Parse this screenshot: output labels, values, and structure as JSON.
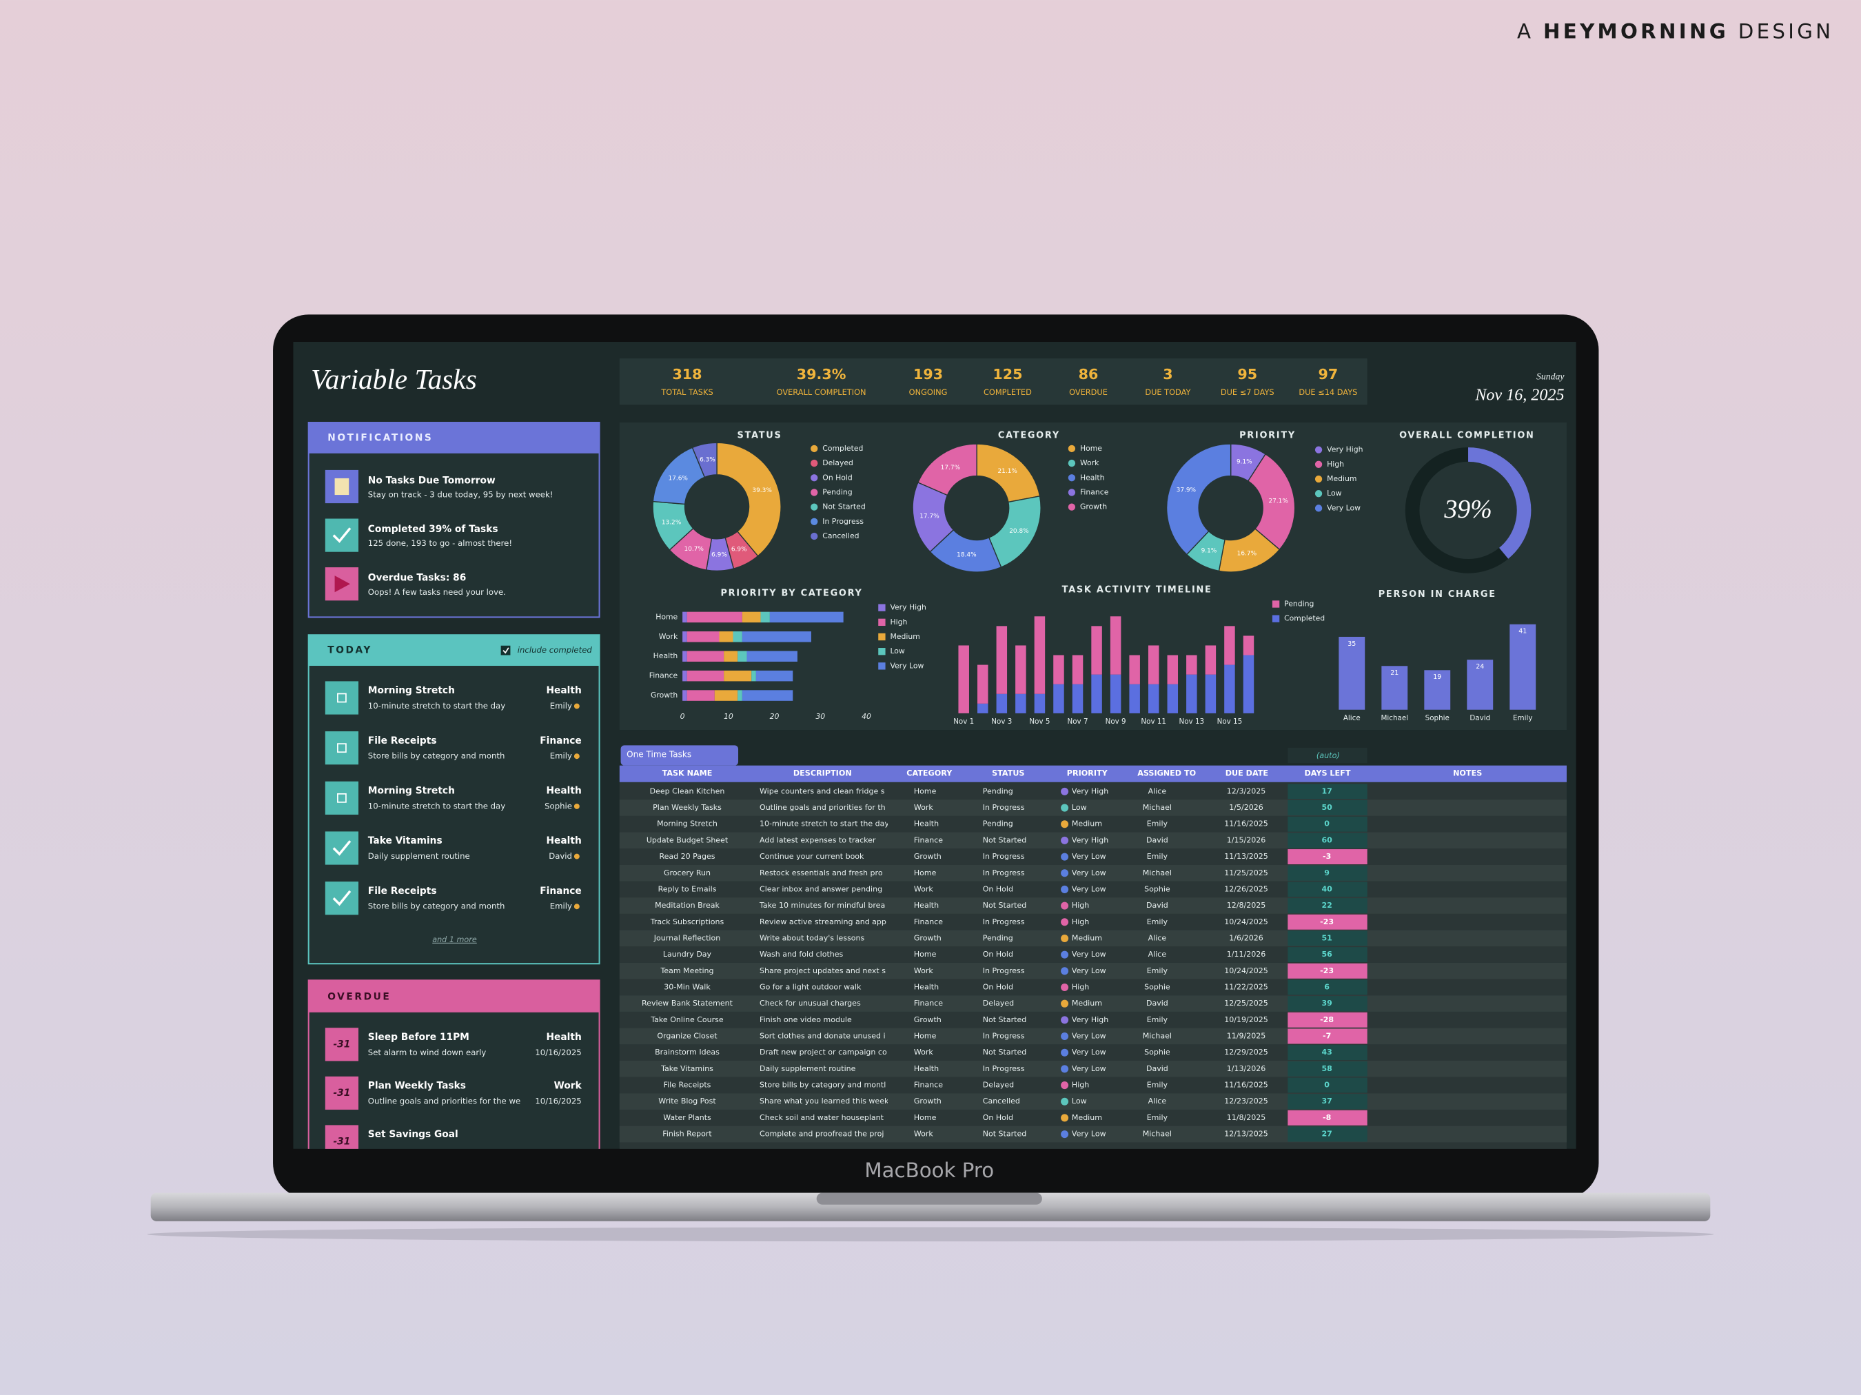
{
  "brand": {
    "prefix": "A",
    "name": "HEYMORNING",
    "suffix": "DESIGN"
  },
  "device_label": "MacBook Pro",
  "header": {
    "title": "Variable Tasks",
    "weekday": "Sunday",
    "date": "Nov 16, 2025"
  },
  "kpis": [
    {
      "value": 318,
      "label": "TOTAL TASKS"
    },
    {
      "value": "39.3%",
      "label": "OVERALL COMPLETION"
    },
    {
      "value": 193,
      "label": "ONGOING"
    },
    {
      "value": 125,
      "label": "COMPLETED"
    },
    {
      "value": 86,
      "label": "OVERDUE"
    },
    {
      "value": 3,
      "label": "DUE TODAY"
    },
    {
      "value": 95,
      "label": "DUE ≤7 DAYS"
    },
    {
      "value": 97,
      "label": "DUE ≤14 DAYS"
    }
  ],
  "notifications": {
    "title": "NOTIFICATIONS",
    "items": [
      {
        "title": "No Tasks Due Tomorrow",
        "text": "Stay on track - 3 due today, 95 by next week!"
      },
      {
        "title": "Completed 39% of Tasks",
        "text": "125 done, 193 to go - almost there!"
      },
      {
        "title": "Overdue Tasks: 86",
        "text": "Oops! A few tasks need your love."
      }
    ]
  },
  "today": {
    "title": "TODAY",
    "toggle": "include completed",
    "more": "and 1 more",
    "items": [
      {
        "name": "Morning Stretch",
        "desc": "10-minute stretch to start the day",
        "category": "Health",
        "person": "Emily",
        "done": false
      },
      {
        "name": "File Receipts",
        "desc": "Store bills by category and month",
        "category": "Finance",
        "person": "Emily",
        "done": false
      },
      {
        "name": "Morning Stretch",
        "desc": "10-minute stretch to start the day",
        "category": "Health",
        "person": "Sophie",
        "done": false
      },
      {
        "name": "Take Vitamins",
        "desc": "Daily supplement routine",
        "category": "Health",
        "person": "David",
        "done": true
      },
      {
        "name": "File Receipts",
        "desc": "Store bills by category and month",
        "category": "Finance",
        "person": "Emily",
        "done": true
      }
    ]
  },
  "overdue": {
    "title": "OVERDUE",
    "items": [
      {
        "days": -31,
        "name": "Sleep Before 11PM",
        "desc": "Set alarm to wind down early",
        "category": "Health",
        "date": "10/16/2025"
      },
      {
        "days": -31,
        "name": "Plan Weekly Tasks",
        "desc": "Outline goals and priorities for the we",
        "category": "Work",
        "date": "10/16/2025"
      },
      {
        "days": -31,
        "name": "Set Savings Goal"
      }
    ]
  },
  "chart_data": [
    {
      "type": "donut",
      "title": "STATUS",
      "categories": [
        "Completed",
        "Delayed",
        "On Hold",
        "Pending",
        "Not Started",
        "In Progress",
        "Cancelled"
      ],
      "values": [
        39.3,
        6.9,
        6.9,
        10.7,
        13.2,
        17.6,
        6.3
      ],
      "value_labels": [
        "39.3%",
        "6.9%",
        "6.9%",
        "10.7%",
        "13.2%",
        "17.6%",
        "6.3%"
      ],
      "colors": [
        "#e9a93b",
        "#e05a7a",
        "#8b74e0",
        "#e064a7",
        "#5cc6bd",
        "#5b8ae0",
        "#6a6fd0"
      ]
    },
    {
      "type": "donut",
      "title": "CATEGORY",
      "categories": [
        "Home",
        "Work",
        "Health",
        "Finance",
        "Growth"
      ],
      "values": [
        21.1,
        20.8,
        18.4,
        17.7,
        17.7
      ],
      "value_labels": [
        "21.1%",
        "20.8%",
        "18.4%",
        "17.7%",
        "17.7%"
      ],
      "colors": [
        "#e9a93b",
        "#5cc6bd",
        "#5b7fe0",
        "#8b74e0",
        "#e064a7"
      ]
    },
    {
      "type": "donut",
      "title": "PRIORITY",
      "categories": [
        "Very High",
        "High",
        "Medium",
        "Low",
        "Very Low"
      ],
      "values": [
        9.1,
        27.1,
        16.7,
        9.1,
        37.9
      ],
      "value_labels": [
        "9.1%",
        "27.1%",
        "16.7%",
        "9.1%",
        "37.9%"
      ],
      "colors": [
        "#8b74e0",
        "#e064a7",
        "#e9a93b",
        "#5cc6bd",
        "#5b7fe0"
      ]
    },
    {
      "type": "gauge",
      "title": "OVERALL COMPLETION",
      "values": [
        39
      ],
      "value_labels": [
        "39%"
      ],
      "ylim": [
        0,
        100
      ],
      "color": "#6b74d8"
    },
    {
      "type": "hbar",
      "title": "PRIORITY BY CATEGORY",
      "categories": [
        "Home",
        "Work",
        "Health",
        "Finance",
        "Growth"
      ],
      "series": [
        {
          "name": "Very High",
          "color": "#8b74e0",
          "values": [
            1,
            1,
            1,
            1,
            1
          ]
        },
        {
          "name": "High",
          "color": "#e064a7",
          "values": [
            12,
            7,
            8,
            8,
            6
          ]
        },
        {
          "name": "Medium",
          "color": "#e9a93b",
          "values": [
            4,
            3,
            3,
            6,
            5
          ]
        },
        {
          "name": "Low",
          "color": "#5cc6bd",
          "values": [
            2,
            2,
            2,
            1,
            1
          ]
        },
        {
          "name": "Very Low",
          "color": "#5b7fe0",
          "values": [
            16,
            15,
            11,
            8,
            11
          ]
        }
      ],
      "xlim": [
        0,
        40
      ],
      "xticks": [
        0,
        10,
        20,
        30,
        40
      ],
      "stacked": true
    },
    {
      "type": "bar",
      "title": "TASK ACTIVITY TIMELINE",
      "categories": [
        "Nov 1",
        null,
        "Nov 3",
        null,
        "Nov 5",
        null,
        "Nov 7",
        null,
        "Nov 9",
        null,
        "Nov 11",
        null,
        "Nov 13",
        null,
        "Nov 15",
        null
      ],
      "series": [
        {
          "name": "Pending",
          "color": "#e064a7",
          "values": [
            7,
            4,
            7,
            5,
            8,
            3,
            3,
            5,
            6,
            3,
            4,
            3,
            2,
            3,
            4,
            2
          ]
        },
        {
          "name": "Completed",
          "color": "#5b6fe0",
          "values": [
            0,
            1,
            2,
            2,
            2,
            3,
            3,
            4,
            4,
            3,
            3,
            3,
            4,
            4,
            5,
            6
          ]
        }
      ],
      "ylim": [
        0,
        12
      ],
      "stacked": true
    },
    {
      "type": "bar",
      "title": "PERSON IN CHARGE",
      "categories": [
        "Alice",
        "Michael",
        "Sophie",
        "David",
        "Emily"
      ],
      "values": [
        35,
        21,
        19,
        24,
        41
      ],
      "color": "#6b74d8",
      "ylim": [
        0,
        45
      ]
    }
  ],
  "table": {
    "tab": "One Time Tasks",
    "auto_label": "(auto)",
    "columns": [
      "TASK NAME",
      "DESCRIPTION",
      "CATEGORY",
      "STATUS",
      "PRIORITY",
      "ASSIGNED TO",
      "DUE DATE",
      "DAYS LEFT",
      "NOTES"
    ],
    "rows": [
      [
        "Deep Clean Kitchen",
        "Wipe counters and clean fridge s",
        "Home",
        "Pending",
        "Very High",
        "Alice",
        "12/3/2025",
        17
      ],
      [
        "Plan Weekly Tasks",
        "Outline goals and priorities for th",
        "Work",
        "In Progress",
        "Low",
        "Michael",
        "1/5/2026",
        50
      ],
      [
        "Morning Stretch",
        "10-minute stretch to start the day",
        "Health",
        "Pending",
        "Medium",
        "Emily",
        "11/16/2025",
        0
      ],
      [
        "Update Budget Sheet",
        "Add latest expenses to tracker",
        "Finance",
        "Not Started",
        "Very High",
        "David",
        "1/15/2026",
        60
      ],
      [
        "Read 20 Pages",
        "Continue your current book",
        "Growth",
        "In Progress",
        "Very Low",
        "Emily",
        "11/13/2025",
        -3
      ],
      [
        "Grocery Run",
        "Restock essentials and fresh pro",
        "Home",
        "In Progress",
        "Very Low",
        "Michael",
        "11/25/2025",
        9
      ],
      [
        "Reply to Emails",
        "Clear inbox and answer pending",
        "Work",
        "On Hold",
        "Very Low",
        "Sophie",
        "12/26/2025",
        40
      ],
      [
        "Meditation Break",
        "Take 10 minutes for mindful brea",
        "Health",
        "Not Started",
        "High",
        "David",
        "12/8/2025",
        22
      ],
      [
        "Track Subscriptions",
        "Review active streaming and app",
        "Finance",
        "In Progress",
        "High",
        "Emily",
        "10/24/2025",
        -23
      ],
      [
        "Journal Reflection",
        "Write about today's lessons",
        "Growth",
        "Pending",
        "Medium",
        "Alice",
        "1/6/2026",
        51
      ],
      [
        "Laundry Day",
        "Wash and fold clothes",
        "Home",
        "On Hold",
        "Very Low",
        "Alice",
        "1/11/2026",
        56
      ],
      [
        "Team Meeting",
        "Share project updates and next s",
        "Work",
        "In Progress",
        "Very Low",
        "Emily",
        "10/24/2025",
        -23
      ],
      [
        "30-Min Walk",
        "Go for a light outdoor walk",
        "Health",
        "On Hold",
        "High",
        "Sophie",
        "11/22/2025",
        6
      ],
      [
        "Review Bank Statement",
        "Check for unusual charges",
        "Finance",
        "Delayed",
        "Medium",
        "David",
        "12/25/2025",
        39
      ],
      [
        "Take Online Course",
        "Finish one video module",
        "Growth",
        "Not Started",
        "Very High",
        "Emily",
        "10/19/2025",
        -28
      ],
      [
        "Organize Closet",
        "Sort clothes and donate unused i",
        "Home",
        "In Progress",
        "Very Low",
        "Michael",
        "11/9/2025",
        -7
      ],
      [
        "Brainstorm Ideas",
        "Draft new project or campaign co",
        "Work",
        "Not Started",
        "Very Low",
        "Sophie",
        "12/29/2025",
        43
      ],
      [
        "Take Vitamins",
        "Daily supplement routine",
        "Health",
        "In Progress",
        "Very Low",
        "David",
        "1/13/2026",
        58
      ],
      [
        "File Receipts",
        "Store bills by category and montl",
        "Finance",
        "Delayed",
        "High",
        "Emily",
        "11/16/2025",
        0
      ],
      [
        "Write Blog Post",
        "Share what you learned this week",
        "Growth",
        "Cancelled",
        "Low",
        "Alice",
        "12/23/2025",
        37
      ],
      [
        "Water Plants",
        "Check soil and water houseplant",
        "Home",
        "On Hold",
        "Medium",
        "Emily",
        "11/8/2025",
        -8
      ],
      [
        "Finish Report",
        "Complete and proofread the proj",
        "Work",
        "Not Started",
        "Very Low",
        "Michael",
        "12/13/2025",
        27
      ]
    ]
  }
}
